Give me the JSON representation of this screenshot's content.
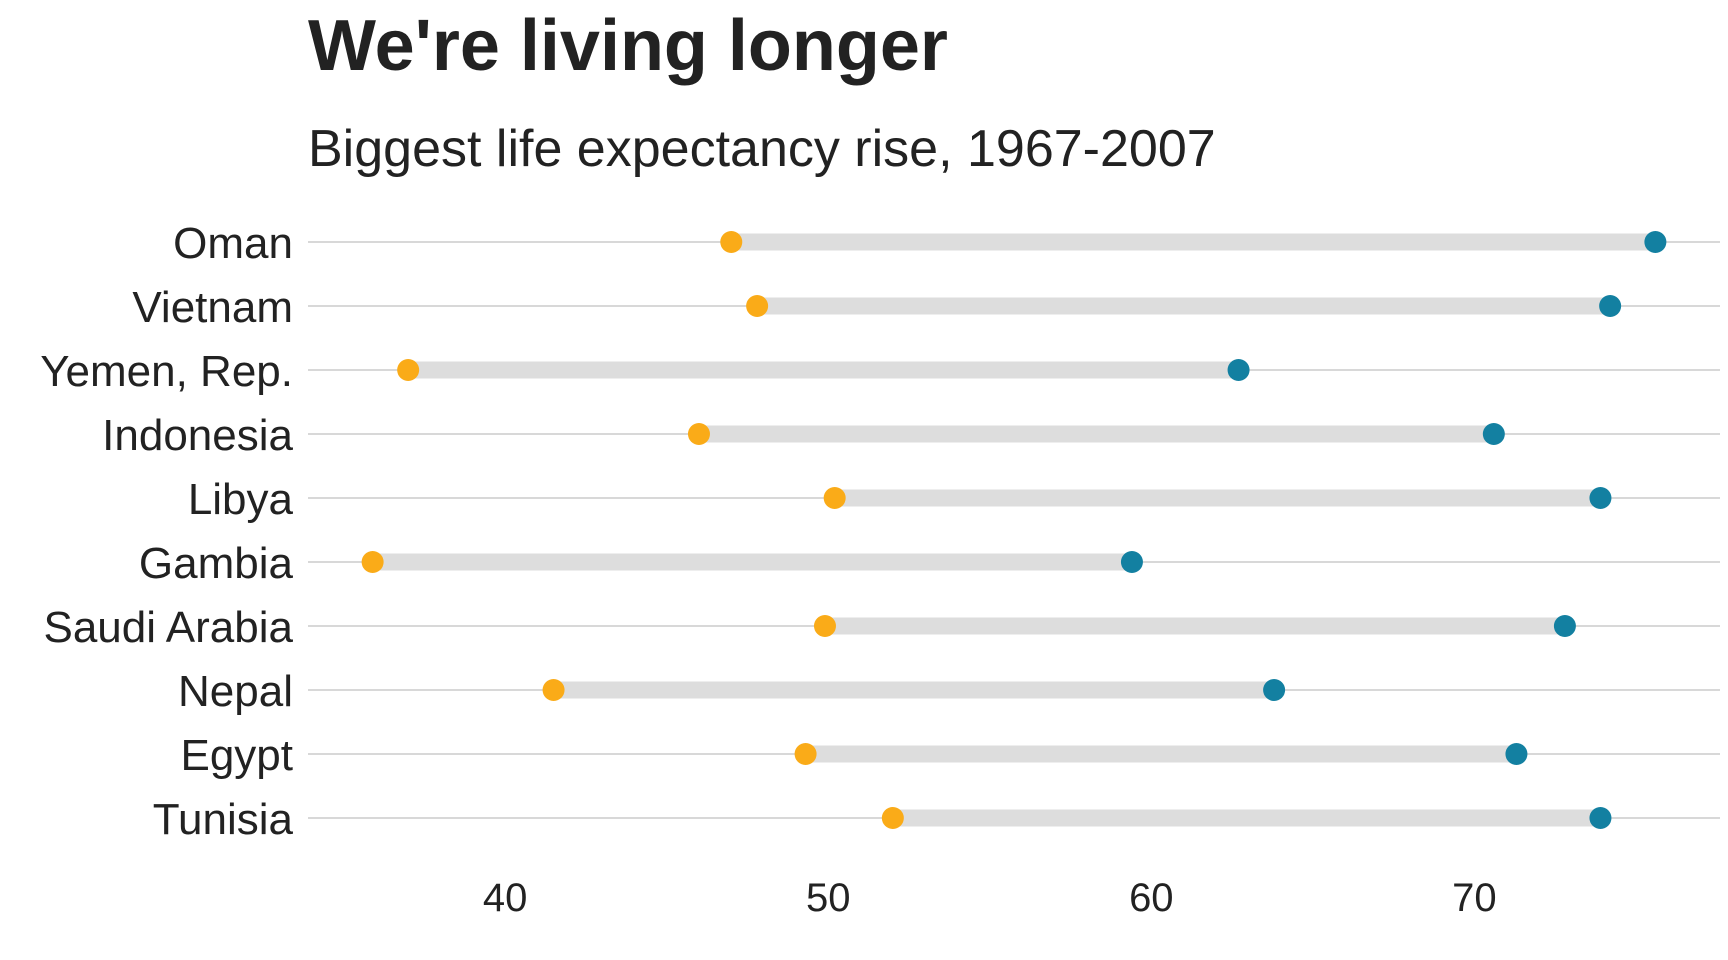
{
  "chart_data": {
    "type": "dumbbell",
    "title": "We're living longer",
    "subtitle": "Biggest life expectancy rise, 1967-2007",
    "xlabel": "",
    "ylabel": "",
    "categories": [
      "Oman",
      "Vietnam",
      "Yemen, Rep.",
      "Indonesia",
      "Libya",
      "Gambia",
      "Saudi Arabia",
      "Nepal",
      "Egypt",
      "Tunisia"
    ],
    "series": [
      {
        "year": "1967",
        "color": "#FAAB18",
        "values": [
          47.0,
          47.8,
          37.0,
          46.0,
          50.2,
          35.9,
          49.9,
          41.5,
          49.3,
          52.0
        ]
      },
      {
        "year": "2007",
        "color": "#1380A1",
        "values": [
          75.6,
          74.2,
          62.7,
          70.6,
          73.9,
          59.4,
          72.8,
          63.8,
          71.3,
          73.9
        ]
      }
    ],
    "connector_color": "#dddddd",
    "gridline_color": "#cbcbcb",
    "xlim": [
      33.9,
      77.6
    ],
    "xticks": [
      "40",
      "50",
      "60",
      "70"
    ],
    "grid": "horizontal",
    "legend": "none"
  }
}
